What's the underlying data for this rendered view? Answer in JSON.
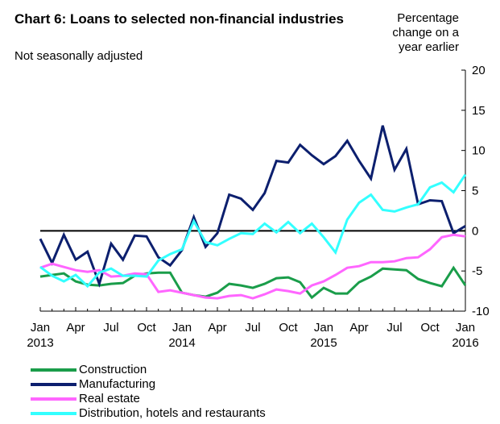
{
  "title": "Chart 6: Loans to selected non-financial industries",
  "subtitle": "Not seasonally adjusted",
  "unit_label": "Percentage change on a year earlier",
  "chart_data": {
    "type": "line",
    "title": "Chart 6: Loans to selected non-financial industries",
    "subtitle": "Not seasonally adjusted",
    "ylabel": "Percentage change on a year earlier",
    "ylim": [
      -10,
      20
    ],
    "y_ticks": [
      -10,
      -5,
      0,
      5,
      10,
      15,
      20
    ],
    "x_ticks": [
      {
        "month": 0,
        "label": "Jan",
        "year": "2013"
      },
      {
        "month": 3,
        "label": "Apr",
        "year": ""
      },
      {
        "month": 6,
        "label": "Jul",
        "year": ""
      },
      {
        "month": 9,
        "label": "Oct",
        "year": ""
      },
      {
        "month": 12,
        "label": "Jan",
        "year": "2014"
      },
      {
        "month": 15,
        "label": "Apr",
        "year": ""
      },
      {
        "month": 18,
        "label": "Jul",
        "year": ""
      },
      {
        "month": 21,
        "label": "Oct",
        "year": ""
      },
      {
        "month": 24,
        "label": "Jan",
        "year": "2015"
      },
      {
        "month": 27,
        "label": "Apr",
        "year": ""
      },
      {
        "month": 30,
        "label": "Jul",
        "year": ""
      },
      {
        "month": 33,
        "label": "Oct",
        "year": ""
      },
      {
        "month": 36,
        "label": "Jan",
        "year": "2016"
      }
    ],
    "x": [
      "Jan 2013",
      "Feb 2013",
      "Mar 2013",
      "Apr 2013",
      "May 2013",
      "Jun 2013",
      "Jul 2013",
      "Aug 2013",
      "Sep 2013",
      "Oct 2013",
      "Nov 2013",
      "Dec 2013",
      "Jan 2014",
      "Feb 2014",
      "Mar 2014",
      "Apr 2014",
      "May 2014",
      "Jun 2014",
      "Jul 2014",
      "Aug 2014",
      "Sep 2014",
      "Oct 2014",
      "Nov 2014",
      "Dec 2014",
      "Jan 2015",
      "Feb 2015",
      "Mar 2015",
      "Apr 2015",
      "May 2015",
      "Jun 2015",
      "Jul 2015",
      "Aug 2015",
      "Sep 2015",
      "Oct 2015",
      "Nov 2015",
      "Dec 2015",
      "Jan 2016"
    ],
    "zero_line": true,
    "grid": false,
    "legend_position": "bottom-left",
    "series": [
      {
        "name": "Construction",
        "color": "#1a9d4a",
        "values": [
          -5.7,
          -5.5,
          -5.3,
          -6.3,
          -6.7,
          -6.8,
          -6.6,
          -6.5,
          -5.6,
          -5.3,
          -5.2,
          -5.2,
          -7.7,
          -8.0,
          -8.2,
          -7.7,
          -6.6,
          -6.8,
          -7.1,
          -6.6,
          -5.9,
          -5.8,
          -6.4,
          -8.3,
          -7.1,
          -7.8,
          -7.8,
          -6.4,
          -5.7,
          -4.7,
          -4.8,
          -4.9,
          -6.0,
          -6.5,
          -6.9,
          -4.6,
          -6.8
        ]
      },
      {
        "name": "Manufacturing",
        "color": "#0c1f6e",
        "values": [
          -1.0,
          -4.0,
          -0.5,
          -3.6,
          -2.6,
          -6.6,
          -1.6,
          -3.6,
          -0.6,
          -0.7,
          -3.3,
          -4.3,
          -2.4,
          1.7,
          -2.0,
          -0.3,
          4.5,
          4.0,
          2.6,
          4.7,
          8.7,
          8.5,
          10.7,
          9.4,
          8.3,
          9.3,
          11.2,
          8.7,
          6.5,
          13.1,
          7.6,
          10.2,
          3.3,
          3.8,
          3.7,
          -0.3,
          0.6
        ]
      },
      {
        "name": "Real estate",
        "color": "#ff66ff",
        "values": [
          -4.6,
          -4.1,
          -4.5,
          -4.9,
          -5.1,
          -4.9,
          -5.7,
          -5.6,
          -5.3,
          -5.4,
          -7.6,
          -7.4,
          -7.7,
          -8.0,
          -8.3,
          -8.4,
          -8.1,
          -8.0,
          -8.4,
          -7.9,
          -7.3,
          -7.5,
          -7.8,
          -6.8,
          -6.3,
          -5.5,
          -4.6,
          -4.4,
          -3.9,
          -3.9,
          -3.8,
          -3.4,
          -3.3,
          -2.3,
          -0.8,
          -0.5,
          -0.7
        ]
      },
      {
        "name": "Distribution, hotels and restaurants",
        "color": "#33ffff",
        "values": [
          -4.5,
          -5.6,
          -6.3,
          -5.5,
          -6.9,
          -5.2,
          -4.7,
          -5.6,
          -5.6,
          -5.7,
          -3.7,
          -2.9,
          -2.3,
          1.2,
          -1.4,
          -1.8,
          -1.0,
          -0.3,
          -0.4,
          0.9,
          -0.2,
          1.1,
          -0.3,
          0.9,
          -0.8,
          -2.7,
          1.4,
          3.5,
          4.5,
          2.6,
          2.4,
          2.9,
          3.3,
          5.4,
          6.0,
          4.8,
          7.0
        ]
      }
    ]
  }
}
